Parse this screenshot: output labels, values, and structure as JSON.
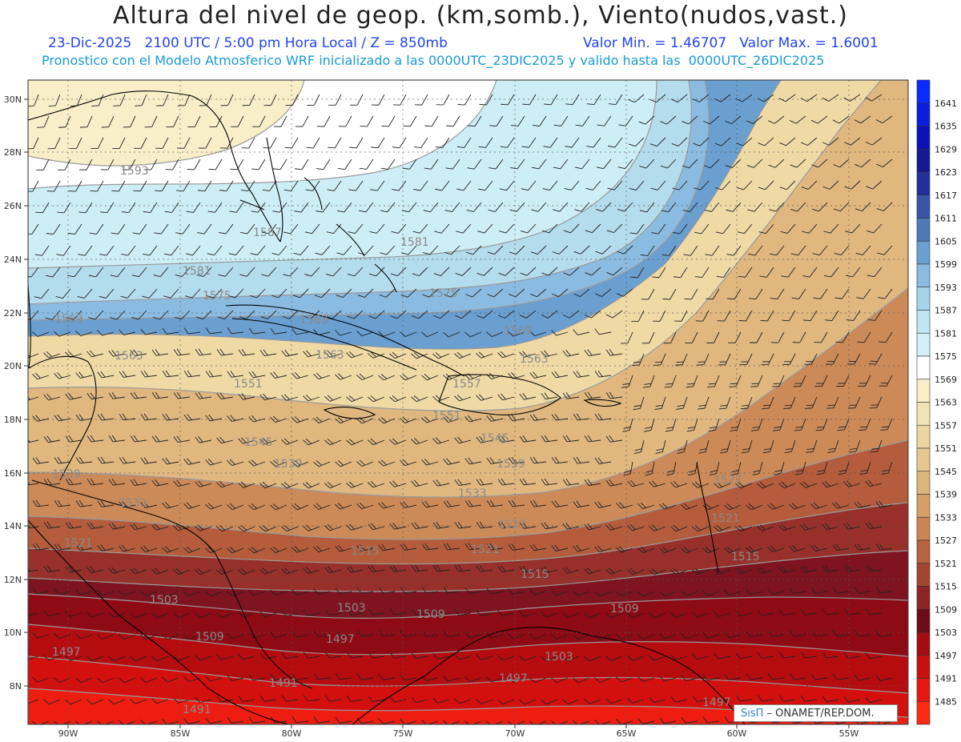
{
  "header": {
    "title": "Altura del nivel de geop. (km,somb.), Viento(nudos,vast.)",
    "date_info": "23-Dic-2025   2100 UTC / 5:00 pm Hora Local / Z = 850mb",
    "minmax": "Valor Min. = 1.46707   Valor Max. = 1.6001",
    "model_info": "Pronostico con el Modelo Atmosferico WRF inicializado a las 0000UTC_23DIC2025 y valido hasta las  0000UTC_26DIC2025"
  },
  "map": {
    "lat_ticks": [
      "30N",
      "28N",
      "26N",
      "24N",
      "22N",
      "20N",
      "18N",
      "16N",
      "14N",
      "12N",
      "10N",
      "8N"
    ],
    "lon_ticks": [
      "90W",
      "85W",
      "80W",
      "75W",
      "70W",
      "65W",
      "60W",
      "55W"
    ],
    "contour_labels": [
      "1593",
      "1587",
      "1581",
      "1581",
      "1575",
      "1575",
      "1569",
      "1569",
      "1569",
      "1563",
      "1563",
      "1563",
      "1557",
      "1551",
      "1551",
      "1545",
      "1545",
      "1539",
      "1539",
      "1539",
      "1533",
      "1533",
      "1527",
      "1527",
      "1521",
      "1521",
      "1521",
      "1515",
      "1515",
      "1515",
      "1509",
      "1509",
      "1509",
      "1503",
      "1503",
      "1503",
      "1497",
      "1497",
      "1497",
      "1497",
      "1491",
      "1491"
    ],
    "zones": [
      {
        "name": "1599",
        "color": "#6a9fd0"
      },
      {
        "name": "1593",
        "color": "#8bbbe0"
      },
      {
        "name": "1587",
        "color": "#b3dcec"
      },
      {
        "name": "1575",
        "color": "#cdeef6"
      },
      {
        "name": "1569",
        "color": "#ffffff"
      },
      {
        "name": "1563",
        "color": "#f8efc8"
      },
      {
        "name": "1551",
        "color": "#efdaa6"
      },
      {
        "name": "1539",
        "color": "#dfb77f"
      },
      {
        "name": "1527",
        "color": "#cc8a58"
      },
      {
        "name": "1521",
        "color": "#b45c3c"
      },
      {
        "name": "1515",
        "color": "#97302a"
      },
      {
        "name": "1509",
        "color": "#7e1420"
      },
      {
        "name": "1503",
        "color": "#8e0a14"
      },
      {
        "name": "1497",
        "color": "#b50c10"
      },
      {
        "name": "1491",
        "color": "#d3100e"
      },
      {
        "name": "1485",
        "color": "#ee1d12"
      }
    ]
  },
  "colorbar": {
    "levels": [
      {
        "label": "1641",
        "color": "#0a2bff"
      },
      {
        "label": "1635",
        "color": "#0b1ee0"
      },
      {
        "label": "1629",
        "color": "#0d12b8"
      },
      {
        "label": "1623",
        "color": "#141a92"
      },
      {
        "label": "1617",
        "color": "#232f9a"
      },
      {
        "label": "1611",
        "color": "#3a55a8"
      },
      {
        "label": "1605",
        "color": "#4d79b6"
      },
      {
        "label": "1599",
        "color": "#6a9fd0"
      },
      {
        "label": "1593",
        "color": "#8bbbe0"
      },
      {
        "label": "1587",
        "color": "#a6d3ea"
      },
      {
        "label": "1581",
        "color": "#bfe5f2"
      },
      {
        "label": "1575",
        "color": "#d3f0f8"
      },
      {
        "label": "1569",
        "color": "#ffffff"
      },
      {
        "label": "1563",
        "color": "#f8efc8"
      },
      {
        "label": "1557",
        "color": "#f3e4b6"
      },
      {
        "label": "1551",
        "color": "#ecd6a0"
      },
      {
        "label": "1545",
        "color": "#e6c88f"
      },
      {
        "label": "1539",
        "color": "#dcb57b"
      },
      {
        "label": "1533",
        "color": "#d4a068"
      },
      {
        "label": "1527",
        "color": "#c98556"
      },
      {
        "label": "1521",
        "color": "#b6633f"
      },
      {
        "label": "1515",
        "color": "#a44530"
      },
      {
        "label": "1509",
        "color": "#8e2426"
      },
      {
        "label": "1503",
        "color": "#6e0c16"
      },
      {
        "label": "1497",
        "color": "#a50c12"
      },
      {
        "label": "1491",
        "color": "#c8100f"
      },
      {
        "label": "1485",
        "color": "#e6170f"
      },
      {
        "label": "",
        "color": "#fd2a12"
      }
    ]
  },
  "credit": {
    "brand": "SısΠ",
    "text": " – ONAMET/REP.DOM."
  }
}
